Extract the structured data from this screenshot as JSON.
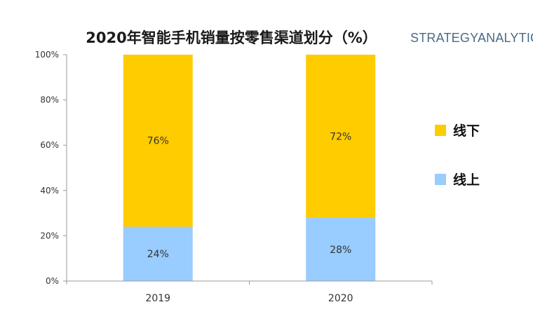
{
  "brand": "STRATEGYANALYTICS",
  "chart_data": {
    "type": "bar",
    "stacked": true,
    "title": "2020年智能手机销量按零售渠道划分（%）",
    "categories": [
      "2019",
      "2020"
    ],
    "series": [
      {
        "name": "线上",
        "values": [
          24,
          28
        ],
        "labels": [
          "24%",
          "28%"
        ],
        "color": "#99CCFF"
      },
      {
        "name": "线下",
        "values": [
          76,
          72
        ],
        "labels": [
          "76%",
          "72%"
        ],
        "color": "#FFCC00"
      }
    ],
    "ylim": [
      0,
      100
    ],
    "yticks": [
      "0%",
      "20%",
      "40%",
      "60%",
      "80%",
      "100%"
    ],
    "legend": {
      "position": "right",
      "order": [
        "线下",
        "线上"
      ]
    },
    "grid": false,
    "xlabel": "",
    "ylabel": ""
  }
}
